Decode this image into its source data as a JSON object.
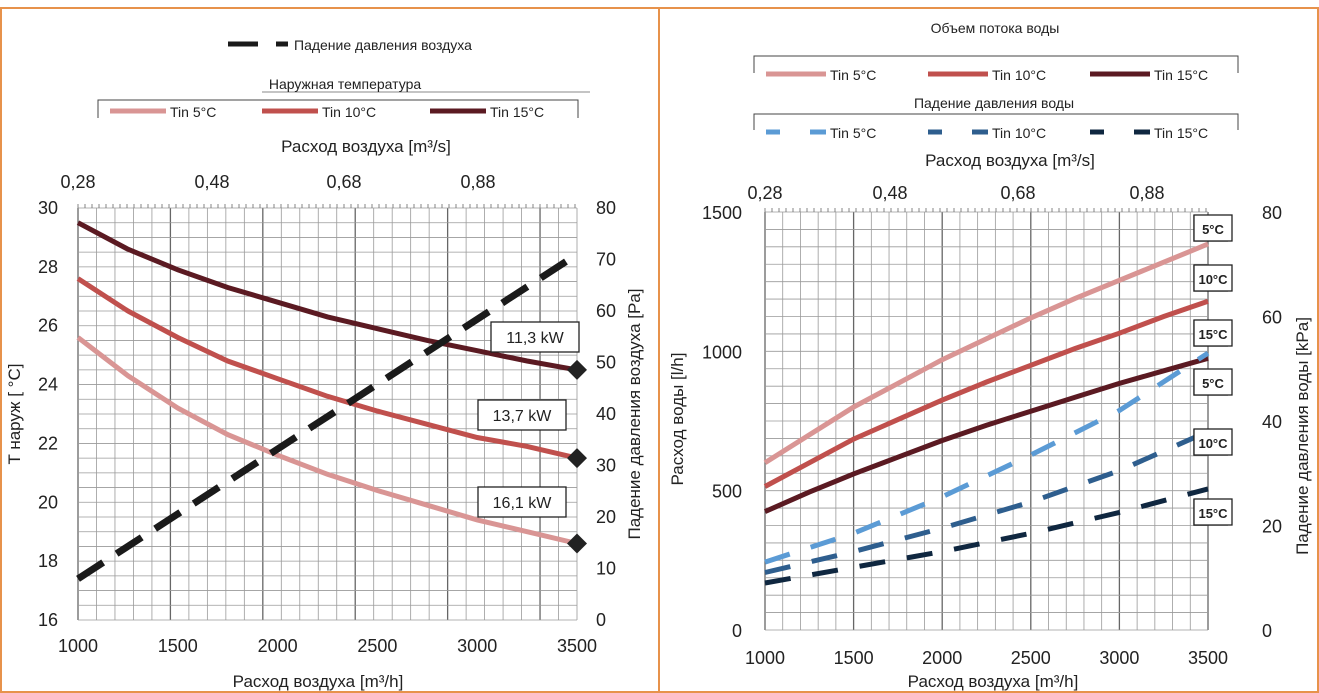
{
  "colors": {
    "frame": "#E7924B",
    "grid": "#9A9A9A",
    "tin5": "#D99594",
    "tin10": "#C0504D",
    "tin15": "#5B1A22",
    "air_dp": "#1A1A1A",
    "water5": "#5B9BD5",
    "water10": "#2E5E8E",
    "water15": "#0F2740",
    "marker": "#222222"
  },
  "chart_data": [
    {
      "type": "line",
      "legend": {
        "dash_entry": "Падение давления воздуха",
        "group_title": "Наружная температура",
        "entries": [
          "Tin 5°C",
          "Tin 10°C",
          "Tin 15°C"
        ]
      },
      "x_label_bottom": "Расход воздуха [m³/h]",
      "x_label_top": "Расход воздуха [m³/s]",
      "y_label_left": "T наруж  [ °C]",
      "y_label_right": "Падение давления воздуха  [Pa]",
      "xlim": [
        1000,
        3500
      ],
      "ylim_left": [
        16,
        30
      ],
      "ylim_right": [
        0,
        80
      ],
      "x_ticks": [
        "1000",
        "1500",
        "2000",
        "2500",
        "3000",
        "3500"
      ],
      "x_top_ticks": [
        "0,28",
        "0,48",
        "0,68",
        "0,88"
      ],
      "y_left_ticks": [
        "16",
        "18",
        "20",
        "22",
        "24",
        "26",
        "28",
        "30"
      ],
      "y_right_ticks": [
        "0",
        "10",
        "20",
        "30",
        "40",
        "50",
        "60",
        "70",
        "80"
      ],
      "series": [
        {
          "name": "Tin 5°C",
          "axis": "left",
          "x": [
            1000,
            1250,
            1500,
            1750,
            2000,
            2250,
            2500,
            2750,
            3000,
            3250,
            3500
          ],
          "y": [
            25.6,
            24.3,
            23.2,
            22.3,
            21.6,
            20.95,
            20.4,
            19.9,
            19.4,
            19.0,
            18.6
          ]
        },
        {
          "name": "Tin 10°C",
          "axis": "left",
          "x": [
            1000,
            1250,
            1500,
            1750,
            2000,
            2250,
            2500,
            2750,
            3000,
            3250,
            3500
          ],
          "y": [
            27.6,
            26.5,
            25.6,
            24.8,
            24.2,
            23.6,
            23.1,
            22.65,
            22.2,
            21.9,
            21.5
          ]
        },
        {
          "name": "Tin 15°C",
          "axis": "left",
          "x": [
            1000,
            1250,
            1500,
            1750,
            2000,
            2250,
            2500,
            2750,
            3000,
            3250,
            3500
          ],
          "y": [
            29.5,
            28.6,
            27.9,
            27.3,
            26.8,
            26.3,
            25.9,
            25.5,
            25.15,
            24.8,
            24.5
          ]
        },
        {
          "name": "Падение давления воздуха",
          "axis": "right",
          "dashed": true,
          "x": [
            1000,
            3500
          ],
          "y": [
            8,
            71
          ]
        }
      ],
      "markers": [
        {
          "x": 3500,
          "y": 24.5,
          "label": "11,3 kW"
        },
        {
          "x": 3500,
          "y": 21.5,
          "label": "13,7 kW"
        },
        {
          "x": 3500,
          "y": 18.6,
          "label": "16,1 kW"
        }
      ]
    },
    {
      "type": "line",
      "legend": {
        "group1_title": "Объем потока воды",
        "group1_entries": [
          "Tin 5°C",
          "Tin 10°C",
          "Tin 15°C"
        ],
        "group2_title": "Падение давления воды",
        "group2_entries": [
          "Tin 5°C",
          "Tin 10°C",
          "Tin 15°C"
        ]
      },
      "x_label_bottom": "Расход воздуха [m³/h]",
      "x_label_top": "Расход воздуха  [m³/s]",
      "y_label_left": "Расход воды [l/h]",
      "y_label_right": "Падение давления воды  [kPa]",
      "xlim": [
        1000,
        3500
      ],
      "ylim_left": [
        0,
        1500
      ],
      "ylim_right": [
        0,
        80
      ],
      "x_ticks": [
        "1000",
        "1500",
        "2000",
        "2500",
        "3000",
        "3500"
      ],
      "x_top_ticks": [
        "0,28",
        "0,48",
        "0,68",
        "0,88"
      ],
      "y_left_ticks": [
        "0",
        "500",
        "1000",
        "1500"
      ],
      "y_right_ticks": [
        "0",
        "20",
        "40",
        "60",
        "80"
      ],
      "series": [
        {
          "name": "Tin 5°C",
          "group": "flow",
          "axis": "left",
          "x": [
            1000,
            1250,
            1500,
            1750,
            2000,
            2250,
            2500,
            2750,
            3000,
            3250,
            3500
          ],
          "y": [
            600,
            700,
            800,
            885,
            970,
            1045,
            1120,
            1190,
            1255,
            1320,
            1385
          ]
        },
        {
          "name": "Tin 10°C",
          "group": "flow",
          "axis": "left",
          "x": [
            1000,
            1250,
            1500,
            1750,
            2000,
            2250,
            2500,
            2750,
            3000,
            3250,
            3500
          ],
          "y": [
            515,
            600,
            685,
            755,
            825,
            890,
            950,
            1010,
            1065,
            1125,
            1180
          ]
        },
        {
          "name": "Tin 15°C",
          "group": "flow",
          "axis": "left",
          "x": [
            1000,
            1250,
            1500,
            1750,
            2000,
            2250,
            2500,
            2750,
            3000,
            3250,
            3500
          ],
          "y": [
            425,
            495,
            560,
            620,
            680,
            735,
            785,
            835,
            885,
            930,
            975
          ]
        },
        {
          "name": "Tin 5°C",
          "group": "dp",
          "axis": "right",
          "dashed": true,
          "x": [
            1000,
            1500,
            2000,
            2500,
            3000,
            3500
          ],
          "y": [
            13,
            18.5,
            25.5,
            33.5,
            42,
            53
          ]
        },
        {
          "name": "Tin 10°C",
          "group": "dp",
          "axis": "right",
          "dashed": true,
          "x": [
            1000,
            1500,
            2000,
            2500,
            3000,
            3500
          ],
          "y": [
            11,
            15,
            19.5,
            24.5,
            30.5,
            38
          ]
        },
        {
          "name": "Tin 15°C",
          "group": "dp",
          "axis": "right",
          "dashed": true,
          "x": [
            1000,
            1500,
            2000,
            2500,
            3000,
            3500
          ],
          "y": [
            9,
            12,
            15,
            18.5,
            22.5,
            27
          ]
        }
      ],
      "end_labels": [
        "5°C",
        "10°C",
        "15°C",
        "5°C",
        "10°C",
        "15°C"
      ]
    }
  ]
}
